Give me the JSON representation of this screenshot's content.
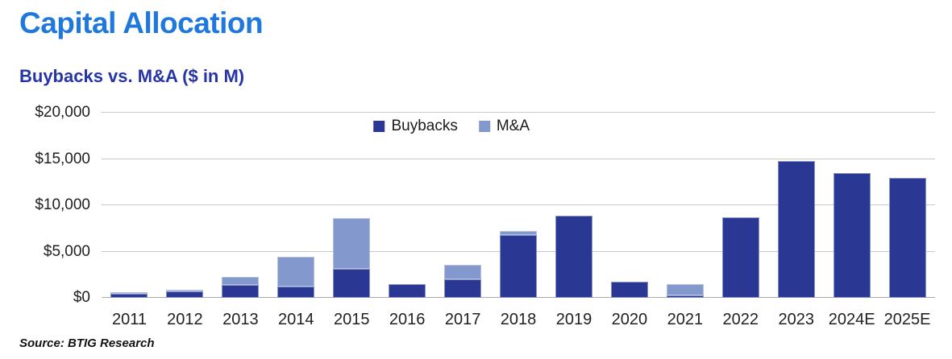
{
  "page": {
    "title": "Capital Allocation",
    "subtitle": "Buybacks vs. M&A ($ in M)",
    "source": "Source: BTIG Research"
  },
  "colors": {
    "title": "#1E78DE",
    "subtitle": "#2534A6",
    "buybacks": "#2A3793",
    "ma": "#8398CD",
    "gridline": "#C7C7C7"
  },
  "chart_data": {
    "type": "bar",
    "stacked": true,
    "title": "Buybacks vs. M&A ($ in M)",
    "categories": [
      "2011",
      "2012",
      "2013",
      "2014",
      "2015",
      "2016",
      "2017",
      "2018",
      "2019",
      "2020",
      "2021",
      "2022",
      "2023",
      "2024E",
      "2025E"
    ],
    "series": [
      {
        "name": "Buybacks",
        "color": "#2A3793",
        "values": [
          450,
          700,
          1400,
          1250,
          3100,
          1500,
          2000,
          6800,
          8900,
          1700,
          300,
          8700,
          14800,
          13500,
          13000
        ]
      },
      {
        "name": "M&A",
        "color": "#8398CD",
        "values": [
          200,
          150,
          900,
          3150,
          5500,
          0,
          1600,
          400,
          0,
          0,
          1200,
          0,
          0,
          0,
          0
        ]
      }
    ],
    "xlabel": "",
    "ylabel": "",
    "ylim": [
      0,
      20000
    ],
    "ytick_step": 5000,
    "ytick_labels": [
      "$0",
      "$5,000",
      "$10,000",
      "$15,000",
      "$20,000"
    ],
    "grid": true,
    "legend_position": "top-center"
  }
}
